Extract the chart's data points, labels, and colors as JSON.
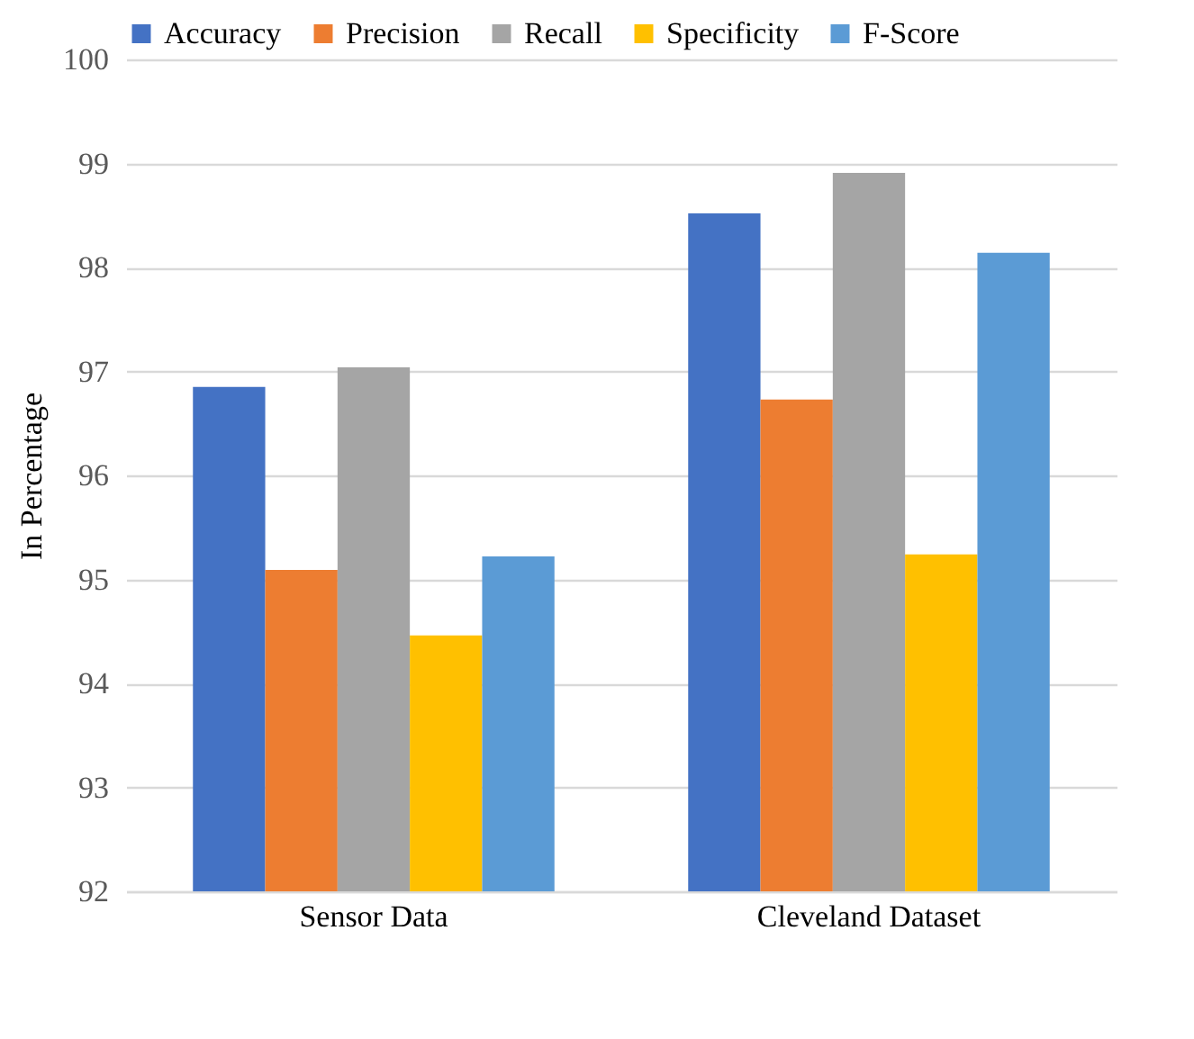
{
  "chart_data": {
    "type": "bar",
    "ylabel": "In Percentage",
    "categories": [
      "Sensor Data",
      "Cleveland Dataset"
    ],
    "series": [
      {
        "name": "Accuracy",
        "color": "#4472c4",
        "values": [
          96.85,
          98.52
        ]
      },
      {
        "name": "Precision",
        "color": "#ed7d31",
        "values": [
          95.09,
          96.73
        ]
      },
      {
        "name": "Recall",
        "color": "#a5a5a5",
        "values": [
          97.04,
          98.91
        ]
      },
      {
        "name": "Specificity",
        "color": "#ffc000",
        "values": [
          94.46,
          95.24
        ]
      },
      {
        "name": "F-Score",
        "color": "#5b9bd5",
        "values": [
          95.22,
          98.14
        ]
      }
    ],
    "ylim": [
      92,
      100
    ],
    "yticks": [
      92,
      93,
      94,
      95,
      96,
      97,
      98,
      99,
      100
    ],
    "grid": "y",
    "legend": "top"
  }
}
